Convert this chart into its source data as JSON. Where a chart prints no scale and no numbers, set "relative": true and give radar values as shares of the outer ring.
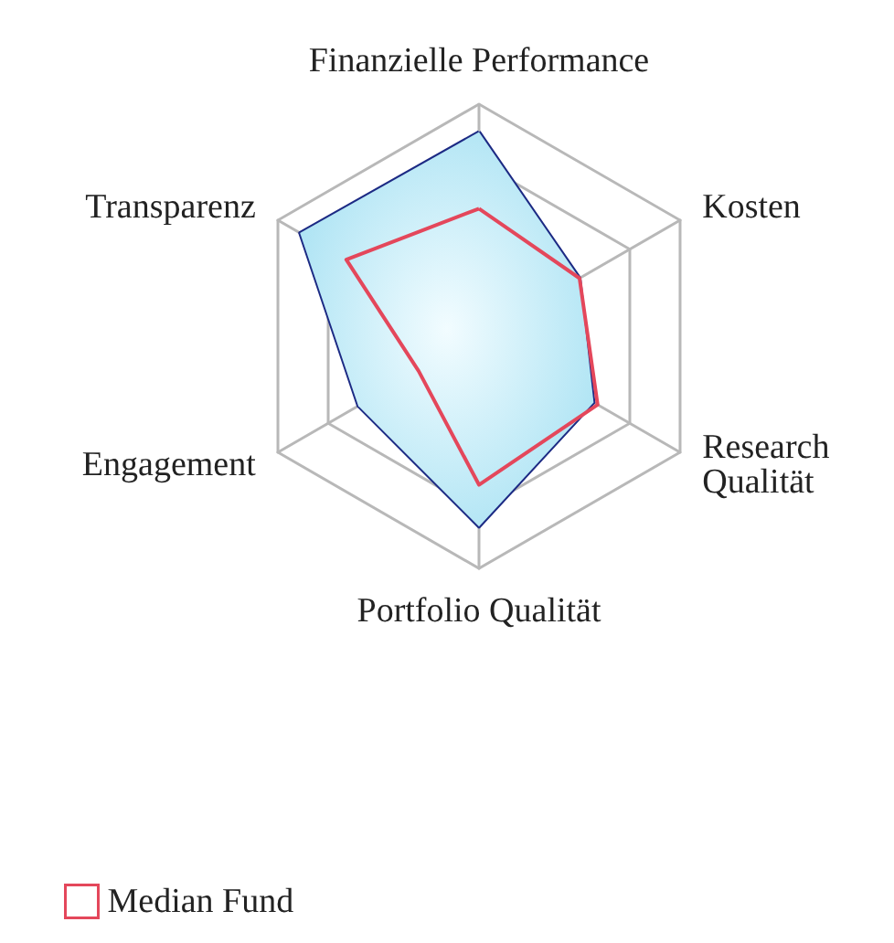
{
  "chart_data": {
    "type": "radar",
    "relative": true,
    "categories": [
      "Finanzielle Performance",
      "Kosten",
      "Research Qualität",
      "Portfolio Qualität",
      "Engagement",
      "Transparenz"
    ],
    "series": [
      {
        "color": "#1c2a84",
        "values": [
          0.88,
          0.5,
          0.57,
          0.82,
          0.6,
          0.89
        ]
      },
      {
        "name": "Median Fund",
        "color": "#e4475b",
        "values": [
          0.55,
          0.5,
          0.59,
          0.64,
          0.3,
          0.66
        ]
      }
    ],
    "legend": "bottom left",
    "grid": true
  }
}
